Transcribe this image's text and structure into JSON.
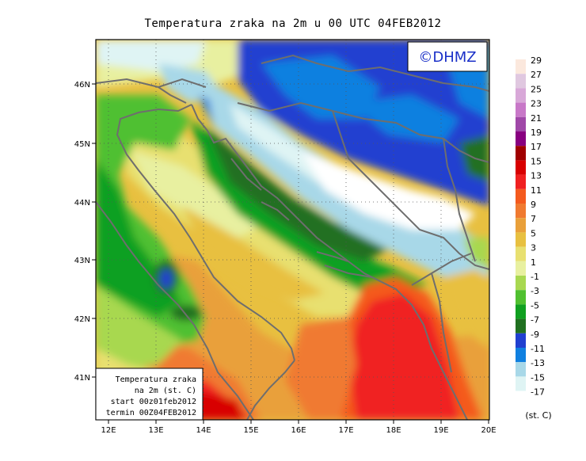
{
  "title": "Temperatura zraka na 2m u 00 UTC 04FEB2012",
  "logo_text": "©DHMZ",
  "info_box": {
    "line1": "Temperatura zraka",
    "line2": "na 2m (st. C)",
    "line3": "start 00z01feb2012",
    "line4": "termin 00Z04FEB2012"
  },
  "x_ticks": [
    "12E",
    "13E",
    "14E",
    "15E",
    "16E",
    "17E",
    "18E",
    "19E",
    "20E"
  ],
  "y_ticks": [
    "46N",
    "45N",
    "44N",
    "43N",
    "42N",
    "41N"
  ],
  "legend": {
    "unit": "(st. C)",
    "levels": [
      {
        "label": "29",
        "color": "#fbe8dd"
      },
      {
        "label": "27",
        "color": "#e0c8e0"
      },
      {
        "label": "25",
        "color": "#d8a8d8"
      },
      {
        "label": "23",
        "color": "#c878c8"
      },
      {
        "label": "21",
        "color": "#a048a8"
      },
      {
        "label": "19",
        "color": "#880080"
      },
      {
        "label": "17",
        "color": "#a00000"
      },
      {
        "label": "15",
        "color": "#d80000"
      },
      {
        "label": "13",
        "color": "#f02020"
      },
      {
        "label": "11",
        "color": "#f45a1e"
      },
      {
        "label": "9",
        "color": "#f07a30"
      },
      {
        "label": "7",
        "color": "#e9a03a"
      },
      {
        "label": "5",
        "color": "#e8c040"
      },
      {
        "label": "3",
        "color": "#e8e070"
      },
      {
        "label": "1",
        "color": "#e8f0a0"
      },
      {
        "label": "-1",
        "color": "#a8d850"
      },
      {
        "label": "-3",
        "color": "#50c030"
      },
      {
        "label": "-5",
        "color": "#10a020"
      },
      {
        "label": "-7",
        "color": "#207020"
      },
      {
        "label": "-9",
        "color": "#2040d0"
      },
      {
        "label": "-11",
        "color": "#1080e0"
      },
      {
        "label": "-13",
        "color": "#a8d8e8"
      },
      {
        "label": "-15",
        "color": "#dff4f4"
      },
      {
        "label": "-17",
        "color": ""
      }
    ]
  }
}
